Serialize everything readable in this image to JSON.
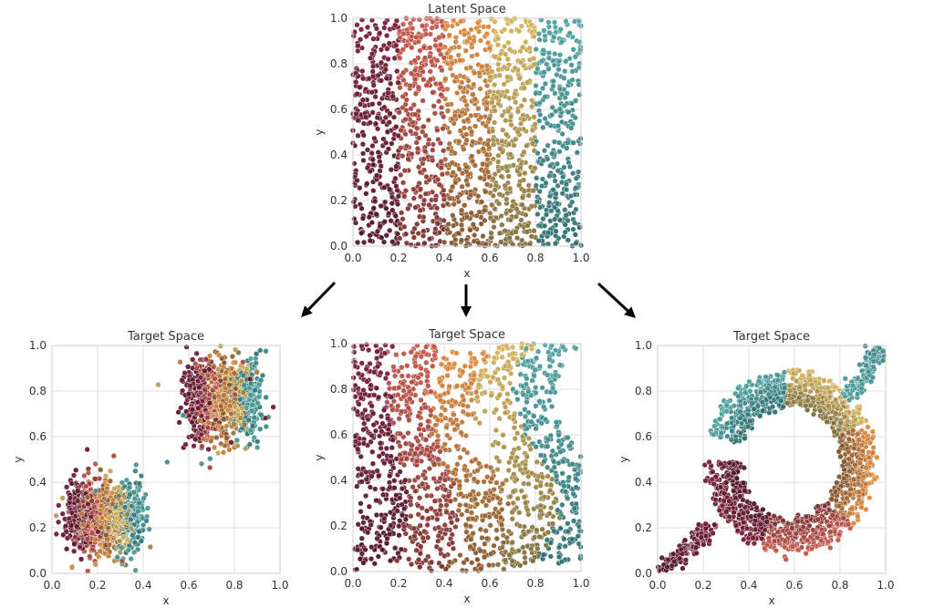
{
  "colors": {
    "bands": [
      "#7a1e3a",
      "#c9574a",
      "#de8b3e",
      "#d6b45a",
      "#4fa3a1"
    ],
    "bands_dark": [
      "#4a1626",
      "#6a2d2e",
      "#6e4a2a",
      "#6e6038",
      "#2b6566"
    ],
    "grid": "#dddddd",
    "arrow": "#000000"
  },
  "chart_data": [
    {
      "id": "latent",
      "type": "scatter",
      "title": "Latent Space",
      "xlabel": "x",
      "ylabel": "y",
      "xlim": [
        0,
        1
      ],
      "ylim": [
        0,
        1
      ],
      "xticks": [
        "0.0",
        "0.2",
        "0.4",
        "0.6",
        "0.8",
        "1.0"
      ],
      "yticks": [
        "0.0",
        "0.2",
        "0.4",
        "0.6",
        "0.8",
        "1.0"
      ],
      "grid": true,
      "color_encoding": "five vertical bands of x: [0,0.2),[0.2,0.4),[0.4,0.6),[0.6,0.8),[0.8,1.0]; darker toward y=0",
      "distribution": "uniform over the unit square"
    },
    {
      "id": "target-1",
      "type": "scatter",
      "title": "Target Space",
      "xlabel": "x",
      "ylabel": "y",
      "xlim": [
        0,
        1
      ],
      "ylim": [
        0,
        1
      ],
      "xticks": [
        "0.0",
        "0.2",
        "0.4",
        "0.6",
        "0.8",
        "1.0"
      ],
      "yticks": [
        "0.0",
        "0.2",
        "0.4",
        "0.6",
        "0.8",
        "1.0"
      ],
      "grid": true,
      "distribution": "two clusters",
      "clusters": [
        {
          "center": [
            0.22,
            0.25
          ],
          "spread": [
            0.09,
            0.08
          ],
          "band_x_range": [
            0.08,
            0.38
          ]
        },
        {
          "center": [
            0.72,
            0.76
          ],
          "spread": [
            0.07,
            0.09
          ],
          "band_x_range": [
            0.6,
            0.9
          ]
        }
      ]
    },
    {
      "id": "target-2",
      "type": "scatter",
      "title": "Target Space",
      "xlabel": "x",
      "ylabel": "y",
      "xlim": [
        0,
        1
      ],
      "ylim": [
        0,
        1
      ],
      "xticks": [
        "0.0",
        "0.2",
        "0.4",
        "0.6",
        "0.8",
        "1.0"
      ],
      "yticks": [
        "0.0",
        "0.2",
        "0.4",
        "0.6",
        "0.8",
        "1.0"
      ],
      "grid": true,
      "distribution": "square with wavy vertical bands and a sparse hole near (0.6, 0.6)"
    },
    {
      "id": "target-3",
      "type": "scatter",
      "title": "Target Space",
      "xlabel": "x",
      "ylabel": "y",
      "xlim": [
        0,
        1
      ],
      "ylim": [
        0,
        1
      ],
      "xticks": [
        "0.0",
        "0.2",
        "0.4",
        "0.6",
        "0.8",
        "1.0"
      ],
      "yticks": [
        "0.0",
        "0.2",
        "0.4",
        "0.6",
        "0.8",
        "1.0"
      ],
      "grid": true,
      "distribution": "ring centered near (0.58, 0.49) with tails to (0.05, 0.05) and (0.98, 0.98)"
    }
  ],
  "arrows": [
    {
      "from": "latent",
      "to": "target-1",
      "direction": "down-left"
    },
    {
      "from": "latent",
      "to": "target-2",
      "direction": "down"
    },
    {
      "from": "latent",
      "to": "target-3",
      "direction": "down-right"
    }
  ]
}
